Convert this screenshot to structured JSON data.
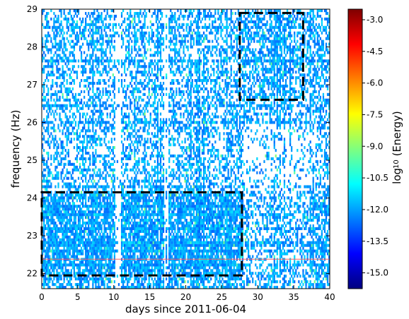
{
  "chart_data": {
    "type": "heatmap",
    "title": "",
    "xlabel": "days since 2011-06-04",
    "ylabel": "frequency (Hz)",
    "xlim": [
      0,
      40
    ],
    "ylim": [
      21.6,
      29
    ],
    "xticks": [
      0,
      5,
      10,
      15,
      20,
      25,
      30,
      35,
      40
    ],
    "yticks": [
      22,
      23,
      24,
      25,
      26,
      27,
      28,
      29
    ],
    "colorbar": {
      "label": "log10 (Energy)",
      "label_base": "log",
      "label_sub": "10",
      "label_rest": " (Energy)",
      "range": [
        -15.75,
        -2.5
      ],
      "ticks": [
        "-3.0",
        "-4.5",
        "-6.0",
        "-7.5",
        "-9.0",
        "-10.5",
        "-12.0",
        "-13.5",
        "-15.0"
      ],
      "tick_values": [
        -3.0,
        -4.5,
        -6.0,
        -7.5,
        -9.0,
        -10.5,
        -12.0,
        -13.5,
        -15.0
      ],
      "colormap": [
        "#00007f",
        "#0000ff",
        "#007fff",
        "#00ffff",
        "#7fff7f",
        "#ffff00",
        "#ff7f00",
        "#ff0000",
        "#7f0000"
      ]
    },
    "background_level": -12.0,
    "horizontal_line": {
      "y": 22.38,
      "color": "#ff6060"
    },
    "annotation_boxes": [
      {
        "x0": 0,
        "x1": 27.8,
        "y0": 21.95,
        "y1": 24.15,
        "style": "dashed",
        "color": "#000000"
      },
      {
        "x0": 27.5,
        "x1": 36.3,
        "y0": 26.6,
        "y1": 28.9,
        "style": "dashed",
        "color": "#000000"
      }
    ]
  }
}
